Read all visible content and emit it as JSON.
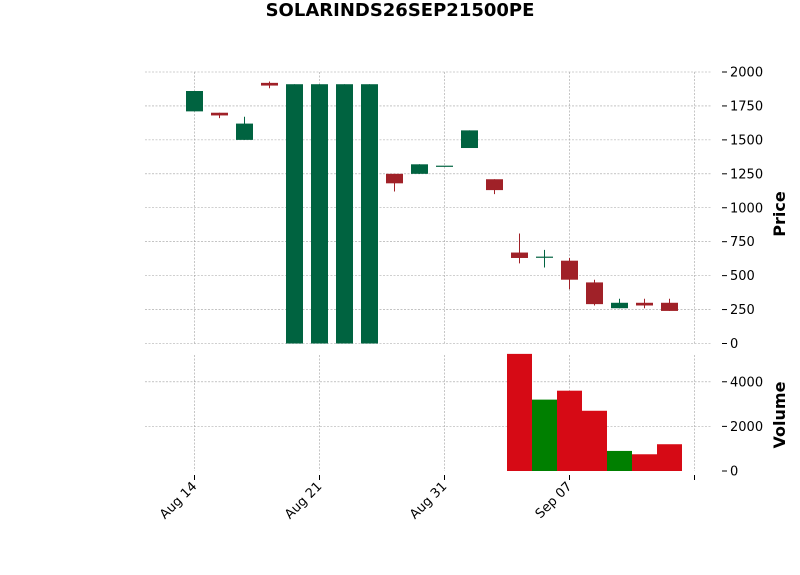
{
  "chart_data": {
    "type": "candlestick",
    "title": "SOLARINDS26SEP21500PE",
    "x_tick_labels": [
      "Aug 14",
      "Aug 21",
      "Aug 31",
      "Sep 07",
      ""
    ],
    "price": {
      "ylabel": "Price",
      "ylim": [
        0,
        2000
      ],
      "yticks": [
        0,
        250,
        500,
        750,
        1000,
        1250,
        1500,
        1750,
        2000
      ],
      "candles": [
        {
          "open": 1710,
          "high": 1860,
          "low": 1710,
          "close": 1860
        },
        {
          "open": 1700,
          "high": 1700,
          "low": 1660,
          "close": 1680
        },
        {
          "open": 1500,
          "high": 1670,
          "low": 1500,
          "close": 1620
        },
        {
          "open": 1920,
          "high": 1930,
          "low": 1880,
          "close": 1900
        },
        {
          "open": 0,
          "high": 1910,
          "low": 0,
          "close": 1910
        },
        {
          "open": 0,
          "high": 1910,
          "low": 0,
          "close": 1910
        },
        {
          "open": 0,
          "high": 1910,
          "low": 0,
          "close": 1910
        },
        {
          "open": 0,
          "high": 1910,
          "low": 0,
          "close": 1910
        },
        {
          "open": 1250,
          "high": 1250,
          "low": 1120,
          "close": 1180
        },
        {
          "open": 1250,
          "high": 1320,
          "low": 1250,
          "close": 1320
        },
        {
          "open": 1310,
          "high": 1310,
          "low": 1310,
          "close": 1310
        },
        {
          "open": 1440,
          "high": 1570,
          "low": 1440,
          "close": 1570
        },
        {
          "open": 1210,
          "high": 1210,
          "low": 1100,
          "close": 1130
        },
        {
          "open": 670,
          "high": 810,
          "low": 590,
          "close": 630
        },
        {
          "open": 640,
          "high": 690,
          "low": 560,
          "close": 640
        },
        {
          "open": 610,
          "high": 630,
          "low": 400,
          "close": 470
        },
        {
          "open": 450,
          "high": 470,
          "low": 280,
          "close": 290
        },
        {
          "open": 260,
          "high": 330,
          "low": 260,
          "close": 300
        },
        {
          "open": 300,
          "high": 330,
          "low": 260,
          "close": 280
        },
        {
          "open": 300,
          "high": 330,
          "low": 240,
          "close": 240
        }
      ]
    },
    "volume": {
      "ylabel": "Volume",
      "ylim": [
        0,
        5200
      ],
      "yticks": [
        0,
        2000,
        4000
      ],
      "values": [
        0,
        0,
        0,
        0,
        0,
        0,
        0,
        0,
        0,
        0,
        0,
        0,
        0,
        5250,
        3200,
        3600,
        2700,
        900,
        750,
        1200
      ]
    },
    "colors": {
      "up": "#006340",
      "down": "#a02128",
      "volume_up": "#007f00",
      "volume_down": "#d60a15",
      "grid": "#a0a0a0"
    },
    "grid": true
  }
}
